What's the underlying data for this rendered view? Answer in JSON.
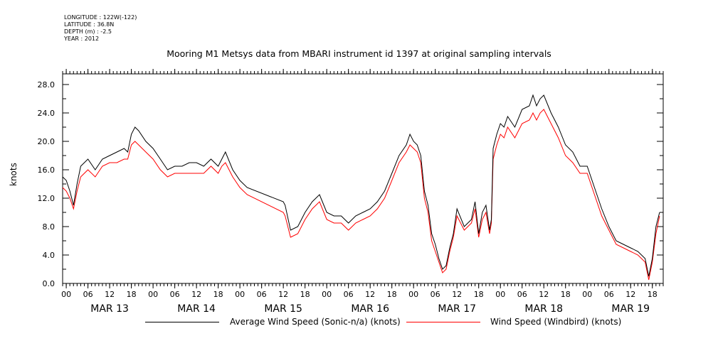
{
  "meta": {
    "longitude": "LONGITUDE : 122W(-122)",
    "latitude": "LATITUDE : 36.8N",
    "depth": "DEPTH (m) : -2.5",
    "year": "YEAR : 2012"
  },
  "chart_data": {
    "type": "line",
    "title": "Mooring M1 Metsys data from MBARI instrument id 1397 at original sampling intervals",
    "ylabel": "knots",
    "xlabel": "",
    "ylim": [
      0,
      29.5
    ],
    "yticks": [
      0,
      4,
      8,
      12,
      16,
      20,
      24,
      28
    ],
    "ytick_labels": [
      "0.0",
      "4.0",
      "8.0",
      "12.0",
      "16.0",
      "20.0",
      "24.0",
      "28.0"
    ],
    "x_unit": "hours since MAR 13 00",
    "xlim": [
      -1,
      165
    ],
    "hour_ticks": [
      0,
      6,
      12,
      18,
      24,
      30,
      36,
      42,
      48,
      54,
      60,
      66,
      72,
      78,
      84,
      90,
      96,
      102,
      108,
      114,
      120,
      126,
      132,
      138,
      144,
      150,
      156,
      162
    ],
    "hour_labels": [
      "00",
      "06",
      "12",
      "18",
      "00",
      "06",
      "12",
      "18",
      "00",
      "06",
      "12",
      "18",
      "00",
      "06",
      "12",
      "18",
      "00",
      "06",
      "12",
      "18",
      "00",
      "06",
      "12",
      "18",
      "00",
      "06",
      "12",
      "18"
    ],
    "day_labels": [
      {
        "hour": 12,
        "label": "MAR 13"
      },
      {
        "hour": 36,
        "label": "MAR 14"
      },
      {
        "hour": 60,
        "label": "MAR 15"
      },
      {
        "hour": 84,
        "label": "MAR 16"
      },
      {
        "hour": 108,
        "label": "MAR 17"
      },
      {
        "hour": 132,
        "label": "MAR 18"
      },
      {
        "hour": 156,
        "label": "MAR 19"
      }
    ],
    "grid": false,
    "legend_position": "bottom",
    "series": [
      {
        "name": "Average Wind Speed (Sonic-n/a) (knots)",
        "color": "#000000",
        "x": [
          -1,
          0,
          1,
          2,
          3,
          4,
          6,
          8,
          10,
          12,
          14,
          16,
          17,
          18,
          19,
          20,
          22,
          24,
          26,
          28,
          30,
          32,
          34,
          36,
          38,
          40,
          42,
          43,
          44,
          46,
          48,
          50,
          60,
          60.5,
          62,
          64,
          66,
          68,
          70,
          72,
          74,
          76,
          78,
          80,
          82,
          84,
          86,
          88,
          90,
          92,
          94,
          95,
          96,
          97,
          98,
          99,
          100,
          101,
          102,
          103,
          104,
          105,
          106,
          107,
          108,
          110,
          112,
          113,
          114,
          115,
          116,
          117,
          117.5,
          118,
          119,
          120,
          121,
          122,
          124,
          126,
          128,
          129,
          130,
          131,
          132,
          134,
          136,
          138,
          140,
          142,
          144,
          146,
          148,
          150,
          152,
          154,
          156,
          158,
          160,
          161,
          162,
          163,
          164
        ],
        "y": [
          15.0,
          14.5,
          13.0,
          11.0,
          14.0,
          16.5,
          17.5,
          16.0,
          17.5,
          18.0,
          18.5,
          19.0,
          18.5,
          21.0,
          22.0,
          21.5,
          20.0,
          19.0,
          17.5,
          16.0,
          16.5,
          16.5,
          17.0,
          17.0,
          16.5,
          17.5,
          16.5,
          17.5,
          18.5,
          16.0,
          14.5,
          13.5,
          11.5,
          11.0,
          7.5,
          8.0,
          10.0,
          11.5,
          12.5,
          10.0,
          9.5,
          9.5,
          8.5,
          9.5,
          10.0,
          10.5,
          11.5,
          13.0,
          15.5,
          18.0,
          19.5,
          21.0,
          20.0,
          19.5,
          18.0,
          13.0,
          11.0,
          7.0,
          5.5,
          3.5,
          2.0,
          2.5,
          5.0,
          7.0,
          10.5,
          8.0,
          9.0,
          11.5,
          7.0,
          10.0,
          11.0,
          7.5,
          9.0,
          19.0,
          21.0,
          22.5,
          22.0,
          23.5,
          22.0,
          24.5,
          25.0,
          26.5,
          25.0,
          26.0,
          26.5,
          24.0,
          22.0,
          19.5,
          18.5,
          16.5,
          16.5,
          13.5,
          10.5,
          8.0,
          6.0,
          5.5,
          5.0,
          4.5,
          3.5,
          1.0,
          3.5,
          8.0,
          10.0
        ]
      },
      {
        "name": "Wind Speed (Windbird) (knots)",
        "color": "#ff0000",
        "x": [
          -1,
          0,
          1,
          2,
          3,
          4,
          6,
          8,
          10,
          12,
          14,
          16,
          17,
          18,
          19,
          20,
          22,
          24,
          26,
          28,
          30,
          32,
          34,
          36,
          38,
          40,
          42,
          43,
          44,
          46,
          48,
          50,
          60,
          60.5,
          62,
          64,
          66,
          68,
          70,
          72,
          74,
          76,
          78,
          80,
          82,
          84,
          86,
          88,
          90,
          92,
          94,
          95,
          96,
          97,
          98,
          99,
          100,
          101,
          102,
          103,
          104,
          105,
          106,
          107,
          108,
          110,
          112,
          113,
          114,
          115,
          116,
          117,
          117.5,
          118,
          119,
          120,
          121,
          122,
          124,
          126,
          128,
          129,
          130,
          131,
          132,
          134,
          136,
          138,
          140,
          142,
          144,
          146,
          148,
          150,
          152,
          154,
          156,
          158,
          160,
          161,
          162,
          163,
          164
        ],
        "y": [
          13.5,
          13.0,
          12.0,
          10.5,
          13.0,
          15.0,
          16.0,
          15.0,
          16.5,
          17.0,
          17.0,
          17.5,
          17.5,
          19.5,
          20.0,
          19.5,
          18.5,
          17.5,
          16.0,
          15.0,
          15.5,
          15.5,
          15.5,
          15.5,
          15.5,
          16.5,
          15.5,
          16.5,
          17.0,
          15.0,
          13.5,
          12.5,
          10.0,
          9.5,
          6.5,
          7.0,
          9.0,
          10.5,
          11.5,
          9.0,
          8.5,
          8.5,
          7.5,
          8.5,
          9.0,
          9.5,
          10.5,
          12.0,
          14.5,
          17.0,
          18.5,
          19.5,
          19.0,
          18.5,
          17.0,
          12.0,
          10.0,
          6.0,
          4.5,
          3.0,
          1.5,
          2.0,
          4.5,
          6.5,
          9.5,
          7.5,
          8.5,
          10.5,
          6.5,
          9.0,
          10.0,
          7.0,
          8.5,
          17.5,
          19.5,
          21.0,
          20.5,
          22.0,
          20.5,
          22.5,
          23.0,
          24.0,
          23.0,
          24.0,
          24.5,
          22.5,
          20.5,
          18.0,
          17.0,
          15.5,
          15.5,
          12.5,
          9.5,
          7.5,
          5.5,
          5.0,
          4.5,
          4.0,
          3.0,
          0.5,
          3.0,
          7.0,
          9.5
        ]
      }
    ]
  }
}
